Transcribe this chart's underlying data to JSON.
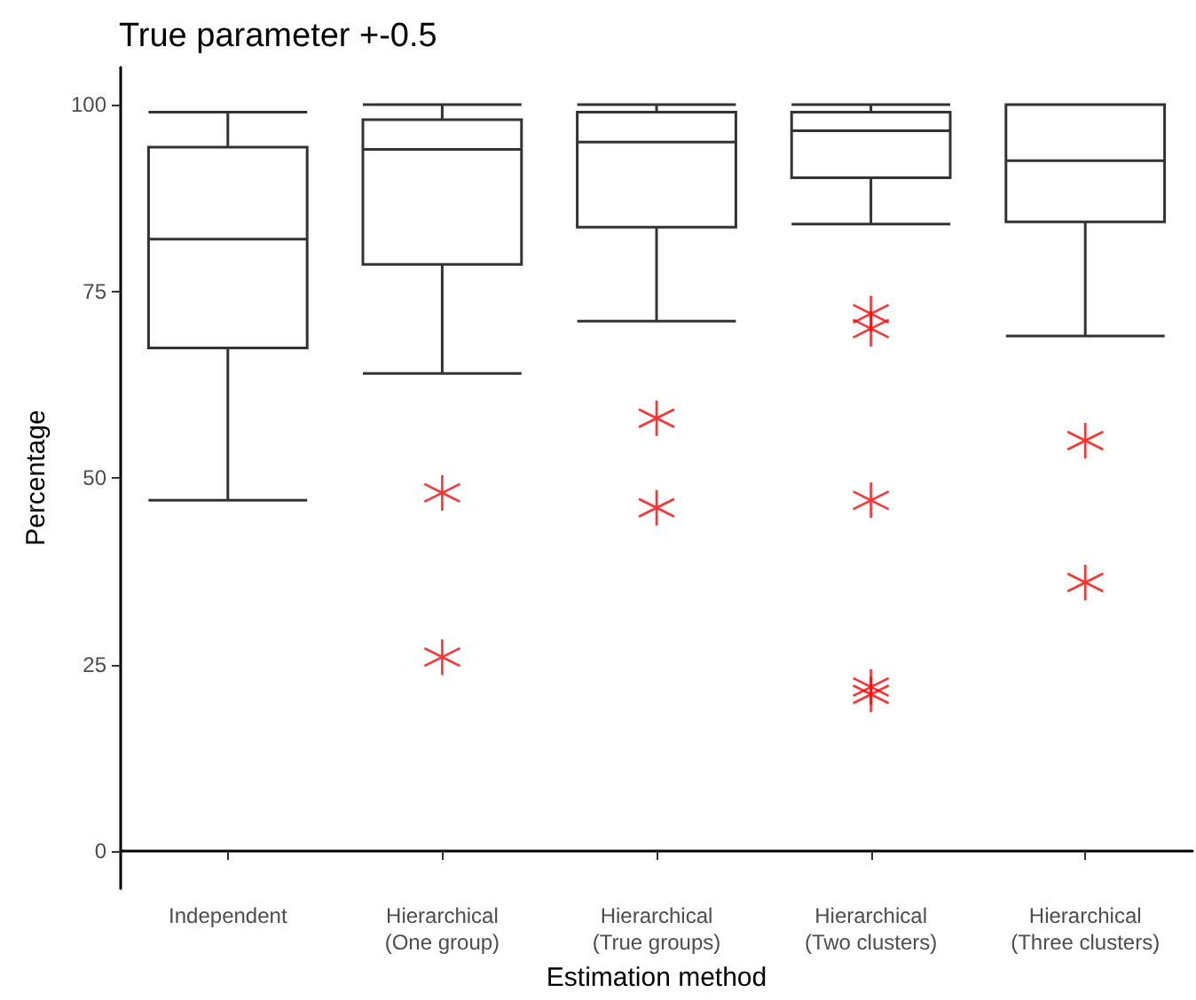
{
  "chart_data": {
    "type": "box",
    "title": "True parameter +-0.5",
    "xlabel": "Estimation method",
    "ylabel": "Percentage",
    "categories": [
      "Independent",
      "Hierarchical\n(One group)",
      "Hierarchical\n(True groups)",
      "Hierarchical\n(Two clusters)",
      "Hierarchical\n(Three clusters)"
    ],
    "series": [
      {
        "color": "#333333",
        "boxes": [
          {
            "low": 47,
            "q1": 67.4,
            "median": 82,
            "q3": 94.3,
            "high": 99
          },
          {
            "low": 64,
            "q1": 78.6,
            "median": 94,
            "q3": 98,
            "high": 100
          },
          {
            "low": 71,
            "q1": 83.6,
            "median": 95,
            "q3": 99,
            "high": 100
          },
          {
            "low": 84,
            "q1": 90.2,
            "median": 96.5,
            "q3": 99,
            "high": 100
          },
          {
            "low": 69,
            "q1": 84.3,
            "median": 92.5,
            "q3": 100,
            "high": 100
          }
        ]
      },
      {
        "type": "scatter",
        "color": "#ff0000",
        "marker": "cross",
        "x": [
          "Hierarchical\n(One group)",
          "Hierarchical\n(One group)",
          "Hierarchical\n(True groups)",
          "Hierarchical\n(True groups)",
          "Hierarchical\n(Two clusters)",
          "Hierarchical\n(Two clusters)",
          "Hierarchical\n(Two clusters)",
          "Hierarchical\n(Two clusters)",
          "Hierarchical\n(Two clusters)",
          "Hierarchical\n(Three clusters)",
          "Hierarchical\n(Three clusters)"
        ],
        "values": [
          48,
          26,
          58,
          46,
          72,
          70,
          47,
          22,
          21,
          55,
          36
        ]
      }
    ],
    "ylim": [
      -5,
      105
    ],
    "yticks": [
      0,
      25,
      50,
      75,
      100
    ],
    "grid": false
  }
}
